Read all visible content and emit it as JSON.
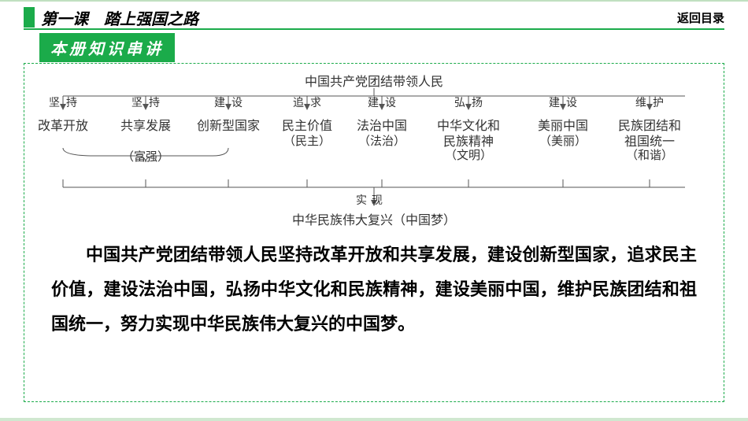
{
  "header": {
    "lesson_title": "第一课　踏上强国之路",
    "return_label": "返回目录"
  },
  "section_tag": "本册知识串讲",
  "diagram": {
    "root": "中国共产党团结带领人民",
    "branches": [
      {
        "action": "坚持",
        "content": "改革开放",
        "sub": ""
      },
      {
        "action": "坚持",
        "content": "共享发展",
        "sub": "（富强）"
      },
      {
        "action": "建设",
        "content": "创新型国家",
        "sub": ""
      },
      {
        "action": "追求",
        "content": "民主价值",
        "sub": "（民主）"
      },
      {
        "action": "建设",
        "content": "法治中国",
        "sub": "（法治）"
      },
      {
        "action": "弘扬",
        "content": "中华文化和",
        "content2": "民族精神",
        "sub": "（文明）"
      },
      {
        "action": "建设",
        "content": "美丽中国",
        "sub": "（美丽）"
      },
      {
        "action": "维护",
        "content": "民族团结和",
        "content2": "祖国统一",
        "sub": "（和谐）"
      }
    ],
    "arrow_label": "实现",
    "result": "中华民族伟大复兴（中国梦）",
    "colors": {
      "line": "#555555",
      "text": "#333333"
    }
  },
  "paragraph": "中国共产党团结带领人民坚持改革开放和共享发展，建设创新型国家，追求民主价值，建设法治中国，弘扬中华文化和民族精神，建设美丽中国，维护民族团结和祖国统一，努力实现中华民族伟大复兴的中国梦。",
  "colors": {
    "green": "#1bab4a",
    "light_green": "#d0e8d0",
    "bg": "#ffffff"
  }
}
